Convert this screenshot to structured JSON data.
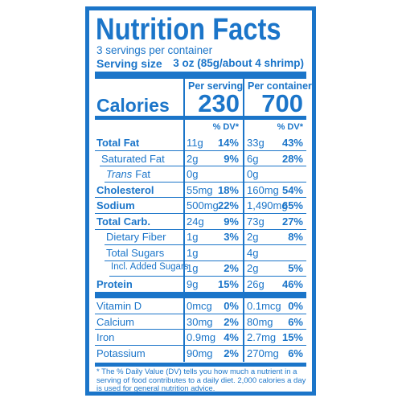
{
  "title": "Nutrition Facts",
  "servings": "3 servings per container",
  "serving_size_label": "Serving size",
  "serving_size": "3 oz (85g/about 4 shrimp)",
  "per_serving": "Per serving",
  "per_container": "Per container",
  "calories_label": "Calories",
  "calories_serving": "230",
  "calories_container": "700",
  "dv_header_serving": "% DV*",
  "dv_header_container": "% DV*",
  "nutrients": [
    {
      "label": "Total Fat",
      "bold": true,
      "indent": 0,
      "serving": "11g",
      "serving_dv": "14%",
      "container": "33g",
      "container_dv": "43%"
    },
    {
      "label": "Saturated Fat",
      "bold": false,
      "indent": 1,
      "serving": "2g",
      "serving_dv": "9%",
      "container": "6g",
      "container_dv": "28%"
    },
    {
      "label_italic": "Trans",
      "label": "Fat",
      "bold": false,
      "indent": 2,
      "serving": "0g",
      "serving_dv": null,
      "container": "0g",
      "container_dv": null
    },
    {
      "label": "Cholesterol",
      "bold": true,
      "indent": 0,
      "serving": "55mg",
      "serving_dv": "18%",
      "container": "160mg",
      "container_dv": "54%"
    },
    {
      "label": "Sodium",
      "bold": true,
      "indent": 0,
      "serving": "500mg",
      "serving_dv": "22%",
      "container": "1,490mg",
      "container_dv": "65%"
    },
    {
      "label": "Total Carb.",
      "bold": true,
      "indent": 0,
      "serving": "24g",
      "serving_dv": "9%",
      "container": "73g",
      "container_dv": "27%"
    },
    {
      "label": "Dietary Fiber",
      "bold": false,
      "indent": 2,
      "serving": "1g",
      "serving_dv": "3%",
      "container": "2g",
      "container_dv": "8%"
    },
    {
      "label": "Total Sugars",
      "bold": false,
      "indent": 2,
      "serving": "1g",
      "serving_dv": null,
      "container": "4g",
      "container_dv": null
    },
    {
      "label": "Incl. Added Sugars",
      "bold": false,
      "indent": 3,
      "small": true,
      "serving": "1g",
      "serving_dv": "2%",
      "container": "2g",
      "container_dv": "5%"
    },
    {
      "label": "Protein",
      "bold": true,
      "indent": 0,
      "serving": "9g",
      "serving_dv": "15%",
      "container": "26g",
      "container_dv": "46%"
    }
  ],
  "vitamins": [
    {
      "label": "Vitamin D",
      "serving": "0mcg",
      "serving_dv": "0%",
      "container": "0.1mcg",
      "container_dv": "0%"
    },
    {
      "label": "Calcium",
      "serving": "30mg",
      "serving_dv": "2%",
      "container": "80mg",
      "container_dv": "6%"
    },
    {
      "label": "Iron",
      "serving": "0.9mg",
      "serving_dv": "4%",
      "container": "2.7mg",
      "container_dv": "15%"
    },
    {
      "label": "Potassium",
      "serving": "90mg",
      "serving_dv": "2%",
      "container": "270mg",
      "container_dv": "6%"
    }
  ],
  "footnote": "* The % Daily Value (DV) tells you how much a nutrient in a serving of food contributes to a daily diet. 2,000 calories a day is used for general nutrition advice."
}
